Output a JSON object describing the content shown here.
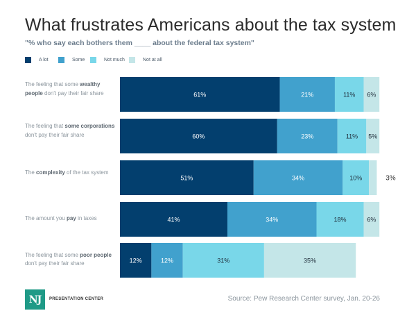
{
  "chart_data": {
    "type": "bar",
    "orientation": "horizontal",
    "stacked": true,
    "title": "What frustrates Americans about the tax system",
    "subtitle": "\"% who say each bothers them ____ about the federal tax system\"",
    "xlabel": "",
    "ylabel": "",
    "xlim": [
      0,
      100
    ],
    "grid": false,
    "legend_position": "top-left",
    "categories": [
      {
        "parts": [
          {
            "t": "The feeling that some ",
            "b": false
          },
          {
            "t": "wealthy people",
            "b": true
          },
          {
            "t": " don't pay their fair share",
            "b": false
          }
        ]
      },
      {
        "parts": [
          {
            "t": "The feeling that ",
            "b": false
          },
          {
            "t": "some corporations",
            "b": true
          },
          {
            "t": " don't pay their fair share",
            "b": false
          }
        ]
      },
      {
        "parts": [
          {
            "t": "The ",
            "b": false
          },
          {
            "t": "complexity",
            "b": true
          },
          {
            "t": " of the tax system",
            "b": false
          }
        ]
      },
      {
        "parts": [
          {
            "t": "The amount you ",
            "b": false
          },
          {
            "t": "pay",
            "b": true
          },
          {
            "t": " in taxes",
            "b": false
          }
        ]
      },
      {
        "parts": [
          {
            "t": "The feeling that some ",
            "b": false
          },
          {
            "t": "poor people",
            "b": true
          },
          {
            "t": " don't pay their fair share",
            "b": false
          }
        ]
      }
    ],
    "category_labels": [
      "The feeling that some wealthy people don't pay their fair share",
      "The feeling that some corporations don't pay their fair share",
      "The complexity of the tax system",
      "The amount you pay in taxes",
      "The feeling that some poor people don't pay their fair share"
    ],
    "series": [
      {
        "name": "A lot",
        "color": "#033f6e",
        "label_color": "#ffffff",
        "values": [
          61,
          60,
          51,
          41,
          12
        ]
      },
      {
        "name": "Some",
        "color": "#41a1cd",
        "label_color": "#ffffff",
        "values": [
          21,
          23,
          34,
          34,
          12
        ]
      },
      {
        "name": "Not much",
        "color": "#79d7e9",
        "label_color": "#1f2d3a",
        "values": [
          11,
          11,
          10,
          18,
          31
        ]
      },
      {
        "name": "Not at all",
        "color": "#c4e6e8",
        "label_color": "#1f2d3a",
        "values": [
          6,
          5,
          3,
          6,
          35
        ]
      }
    ],
    "data_labels_suffix": "%",
    "outside_labels": [
      [
        3,
        2
      ]
    ]
  },
  "footer": {
    "logo_text": "NJ",
    "brand": "PRESENTATION CENTER",
    "source": "Source: Pew Research Center survey, Jan. 20-26"
  }
}
